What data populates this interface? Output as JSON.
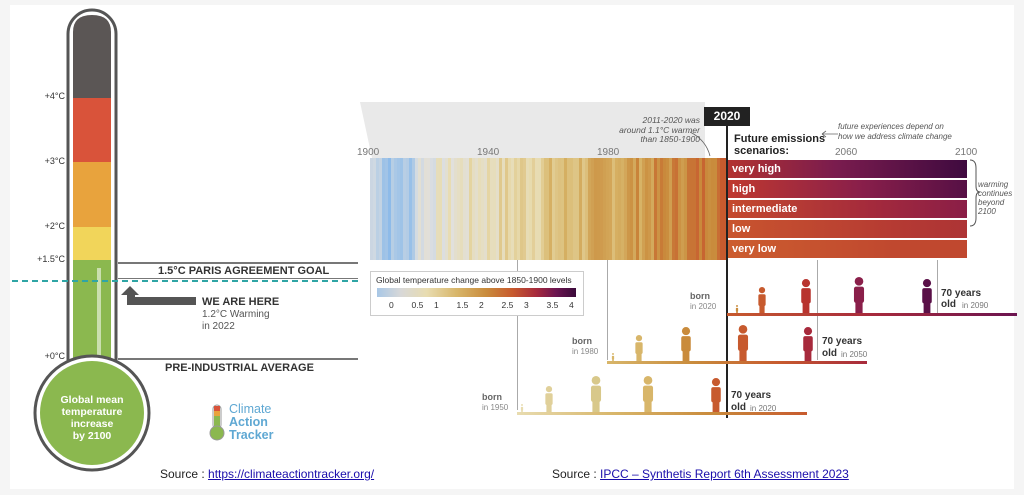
{
  "thermometer": {
    "bulb_text": [
      "Global mean",
      "temperature",
      "increase",
      "by 2100"
    ],
    "labels": [
      "+4°C",
      "+3°C",
      "+2°C",
      "+1.5°C",
      "+0°C"
    ],
    "paris_goal": "1.5°C PARIS AGREEMENT GOAL",
    "we_are_here": "WE ARE HERE",
    "warming_line1": "1.2°C Warming",
    "warming_line2": "in 2022",
    "pre_industrial": "PRE-INDUSTRIAL AVERAGE",
    "logo_text": [
      "Climate",
      "Action",
      "Tracker"
    ],
    "current_warming_c": 1.2,
    "paris_goal_c": 1.5,
    "colors": {
      "top": "#5b5655",
      "red": "#d9533a",
      "orange": "#e8a33d",
      "yellow": "#f1d55a",
      "green": "#8bb84f",
      "dashed": "#2fa5a5"
    }
  },
  "ipcc": {
    "year_marker": "2020",
    "annotation_2011": [
      "2011-2020 was",
      "around 1.1°C warmer",
      "than 1850-1900"
    ],
    "future_title": [
      "Future emissions",
      "scenarios:"
    ],
    "future_note": [
      "future experiences depend on",
      "how we address climate change"
    ],
    "axis_years": [
      "1900",
      "1940",
      "1980",
      "2020",
      "2060",
      "2100"
    ],
    "scenarios": [
      "very high",
      "high",
      "intermediate",
      "low",
      "very low"
    ],
    "warming_note": [
      "warming",
      "continues",
      "beyond",
      "2100"
    ],
    "legend_title": "Global temperature change above 1850-1900 levels",
    "legend_ticks": [
      "0",
      "0.5",
      "1",
      "1.5",
      "2",
      "2.5",
      "3",
      "3.5",
      "4"
    ],
    "generations": [
      {
        "born": "born",
        "born_year": "in 2020",
        "seventy": "70 years",
        "old_in": "old",
        "old_year": "in 2090"
      },
      {
        "born": "born",
        "born_year": "in 1980",
        "seventy": "70 years",
        "old_in": "old",
        "old_year": "in 2050"
      },
      {
        "born": "born",
        "born_year": "in 1950",
        "seventy": "70 years",
        "old_in": "old",
        "old_year": "in 2020"
      }
    ]
  },
  "sources": {
    "left_prefix": "Source : ",
    "left_link": "https://climateactiontracker.org/",
    "right_prefix": "Source : ",
    "right_link": "IPCC – Synthetis Report 6th Assessment 2023"
  }
}
